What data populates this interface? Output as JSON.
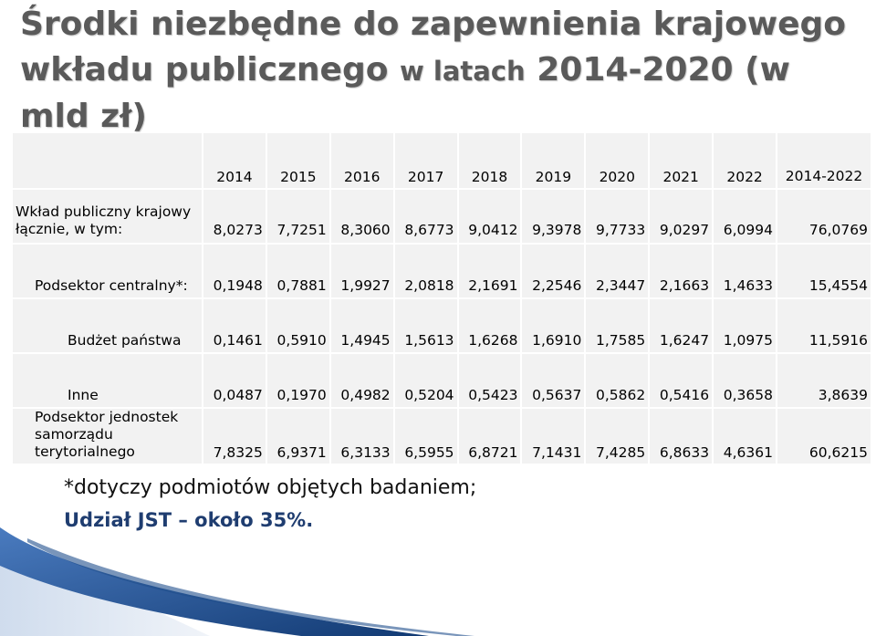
{
  "title": {
    "line1": "Środki niezbędne do zapewnienia krajowego",
    "line2_main": "wkładu publicznego",
    "line2_small": "w latach",
    "line2_end": "2014-2020 (w mld zł)"
  },
  "table": {
    "headers": [
      "",
      "2014",
      "2015",
      "2016",
      "2017",
      "2018",
      "2019",
      "2020",
      "2021",
      "2022",
      "2014-2022"
    ],
    "rows": [
      {
        "label": "Wkład publiczny krajowy łącznie, w tym:",
        "values": [
          "8,0273",
          "7,7251",
          "8,3060",
          "8,6773",
          "9,0412",
          "9,3978",
          "9,7733",
          "9,0297",
          "6,0994",
          "76,0769"
        ]
      },
      {
        "label": "Podsektor centralny*:",
        "values": [
          "0,1948",
          "0,7881",
          "1,9927",
          "2,0818",
          "2,1691",
          "2,2546",
          "2,3447",
          "2,1663",
          "1,4633",
          "15,4554"
        ]
      },
      {
        "label": "Budżet państwa",
        "values": [
          "0,1461",
          "0,5910",
          "1,4945",
          "1,5613",
          "1,6268",
          "1,6910",
          "1,7585",
          "1,6247",
          "1,0975",
          "11,5916"
        ]
      },
      {
        "label": "Inne",
        "values": [
          "0,0487",
          "0,1970",
          "0,4982",
          "0,5204",
          "0,5423",
          "0,5637",
          "0,5862",
          "0,5416",
          "0,3658",
          "3,8639"
        ]
      },
      {
        "label": "Podsektor jednostek samorządu terytorialnego",
        "values": [
          "7,8325",
          "6,9371",
          "6,3133",
          "6,5955",
          "6,8721",
          "7,1431",
          "7,4285",
          "6,8633",
          "4,6361",
          "60,6215"
        ]
      }
    ]
  },
  "footnote": "*dotyczy podmiotów objętych badaniem;",
  "share_note": "Udział JST – około 35%.",
  "colors": {
    "title": "#5a5a5a",
    "cell_bg": "#f2f2f2",
    "share_text": "#1f3d70",
    "deco_blue": "#1f4e8c"
  }
}
